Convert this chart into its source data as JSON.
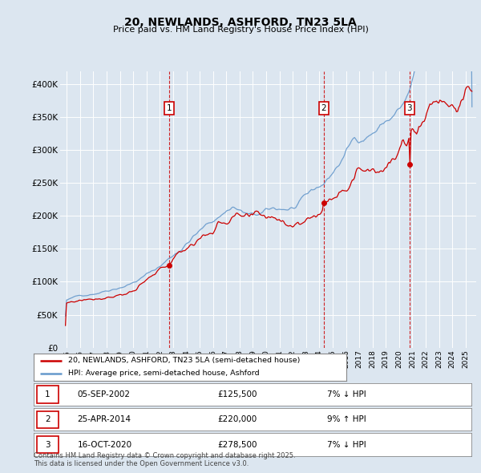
{
  "title": "20, NEWLANDS, ASHFORD, TN23 5LA",
  "subtitle": "Price paid vs. HM Land Registry's House Price Index (HPI)",
  "background_color": "#dce6f0",
  "ylim": [
    0,
    420000
  ],
  "yticks": [
    0,
    50000,
    100000,
    150000,
    200000,
    250000,
    300000,
    350000,
    400000
  ],
  "ytick_labels": [
    "£0",
    "£50K",
    "£100K",
    "£150K",
    "£200K",
    "£250K",
    "£300K",
    "£350K",
    "£400K"
  ],
  "sales": [
    {
      "date_num": 2002.68,
      "price": 125500,
      "label": "1",
      "date_str": "05-SEP-2002",
      "pct": "7%",
      "dir": "↓"
    },
    {
      "date_num": 2014.32,
      "price": 220000,
      "label": "2",
      "date_str": "25-APR-2014",
      "pct": "9%",
      "dir": "↑"
    },
    {
      "date_num": 2020.79,
      "price": 278500,
      "label": "3",
      "date_str": "16-OCT-2020",
      "pct": "7%",
      "dir": "↓"
    }
  ],
  "sale_line_color": "#cc0000",
  "hpi_line_color": "#6699cc",
  "legend_entries": [
    "20, NEWLANDS, ASHFORD, TN23 5LA (semi-detached house)",
    "HPI: Average price, semi-detached house, Ashford"
  ],
  "footer": "Contains HM Land Registry data © Crown copyright and database right 2025.\nThis data is licensed under the Open Government Licence v3.0.",
  "xlim_start": 1994.5,
  "xlim_end": 2025.8,
  "hpi_seed": 42,
  "pp_seed": 77,
  "hpi_base": 55000,
  "hpi_noise": 0.008,
  "pp_noise": 0.012
}
